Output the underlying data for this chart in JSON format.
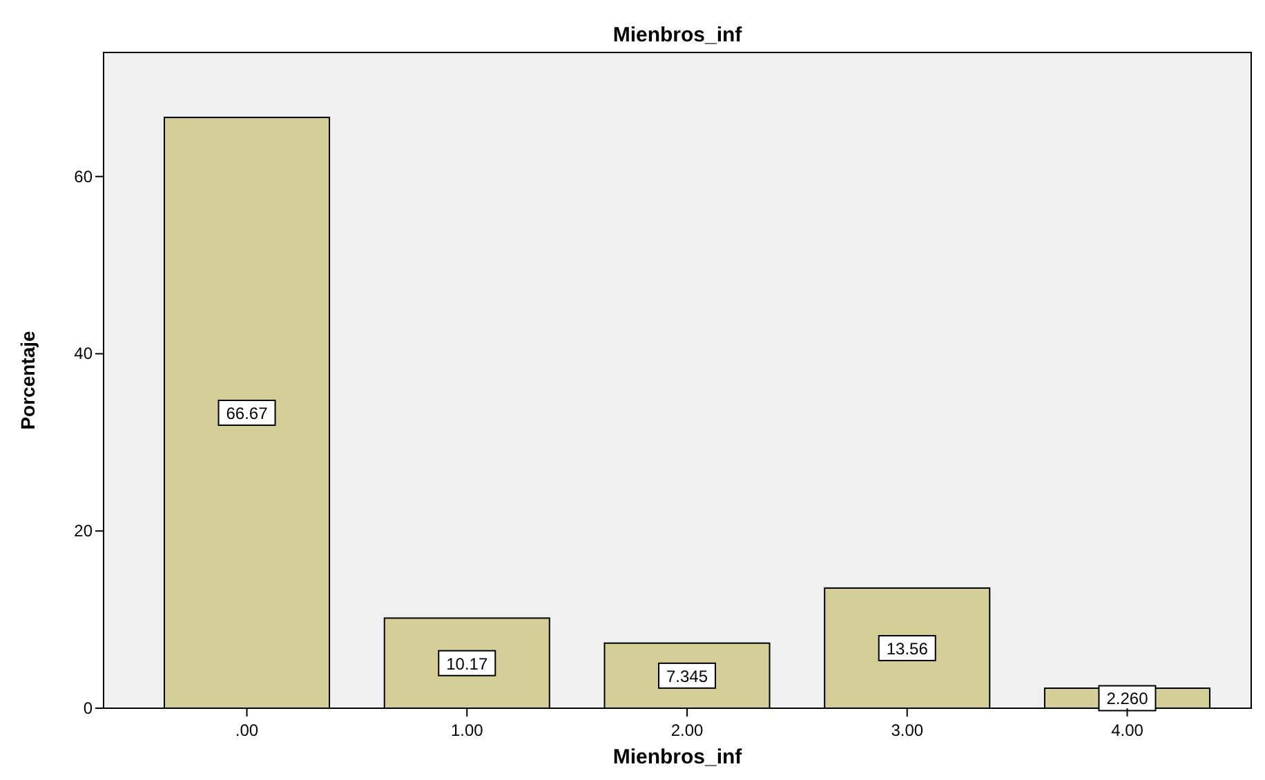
{
  "chart_data": {
    "type": "bar",
    "title": "Mienbros_inf",
    "xlabel": "Mienbros_inf",
    "ylabel": "Porcentaje",
    "categories": [
      ".00",
      "1.00",
      "2.00",
      "3.00",
      "4.00"
    ],
    "values": [
      66.67,
      10.17,
      7.345,
      13.56,
      2.26
    ],
    "value_labels": [
      "66.67",
      "10.17",
      "7.345",
      "13.56",
      "2.260"
    ],
    "color": "#d4cf98",
    "ylim": [
      0,
      74
    ],
    "yticks": [
      0,
      20,
      40,
      60
    ],
    "grid": false
  }
}
